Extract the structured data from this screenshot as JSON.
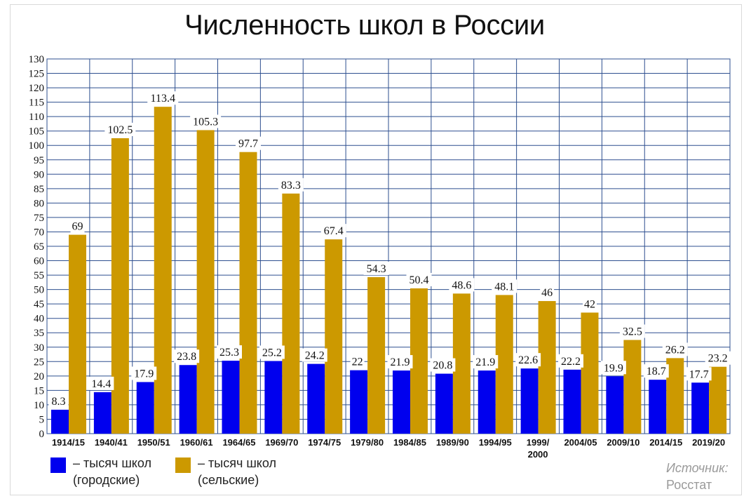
{
  "chart_data": {
    "type": "bar",
    "title": "Численность школ в России",
    "ylim": [
      0,
      130
    ],
    "ystep": 5,
    "grid": true,
    "categories": [
      "1914/15",
      "1940/41",
      "1950/51",
      "1960/61",
      "1964/65",
      "1969/70",
      "1974/75",
      "1979/80",
      "1984/85",
      "1989/90",
      "1994/95",
      "1999/ 2000",
      "2004/05",
      "2009/10",
      "2014/15",
      "2019/20"
    ],
    "series": [
      {
        "name": "– тысяч школ (городские)",
        "color": "#0000ee",
        "values": [
          8.3,
          14.4,
          17.9,
          23.8,
          25.3,
          25.2,
          24.2,
          22,
          21.9,
          20.8,
          21.9,
          22.6,
          22.2,
          19.9,
          18.7,
          17.7
        ]
      },
      {
        "name": "– тысяч школ (сельские)",
        "color": "#cc9900",
        "values": [
          69,
          102.5,
          113.4,
          105.3,
          97.7,
          83.3,
          67.4,
          54.3,
          50.4,
          48.6,
          48.1,
          46,
          42,
          32.5,
          26.2,
          23.2
        ]
      }
    ],
    "legend_position": "bottom-left"
  },
  "legend": {
    "urban_line1": "– тысяч школ",
    "urban_line2": "(городские)",
    "rural_line1": "– тысяч школ",
    "rural_line2": "(сельские)"
  },
  "source": {
    "label": "Источник:",
    "name": "Росстат"
  }
}
